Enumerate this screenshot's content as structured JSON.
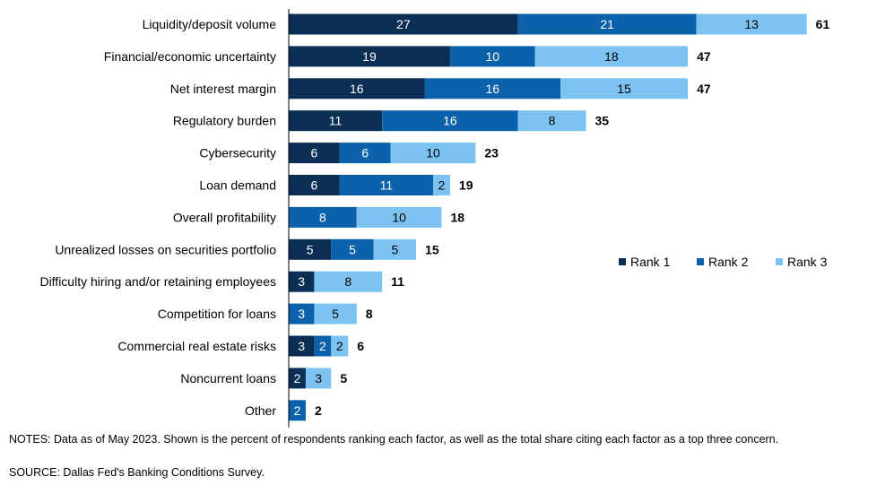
{
  "chart_data": {
    "type": "bar",
    "orientation": "horizontal",
    "stacked": true,
    "categories": [
      "Liquidity/deposit volume",
      "Financial/economic uncertainty",
      "Net interest margin",
      "Regulatory burden",
      "Cybersecurity",
      "Loan demand",
      "Overall profitability",
      "Unrealized losses on securities portfolio",
      "Difficulty hiring and/or retaining employees",
      "Competition for loans",
      "Commercial real estate risks",
      "Noncurrent loans",
      "Other"
    ],
    "series": [
      {
        "name": "Rank 1",
        "color": "#0b2f54",
        "values": [
          27,
          19,
          16,
          11,
          6,
          6,
          0,
          5,
          3,
          0,
          3,
          2,
          0
        ]
      },
      {
        "name": "Rank 2",
        "color": "#0b62ab",
        "values": [
          21,
          10,
          16,
          16,
          6,
          11,
          8,
          5,
          0,
          3,
          2,
          0,
          2
        ]
      },
      {
        "name": "Rank 3",
        "color": "#7cc3f2",
        "values": [
          13,
          18,
          15,
          8,
          10,
          2,
          10,
          5,
          8,
          5,
          2,
          3,
          0
        ]
      }
    ],
    "series_labels": [
      [
        "27",
        "21",
        "13"
      ],
      [
        "19",
        "10",
        "18"
      ],
      [
        "16",
        "16",
        "15"
      ],
      [
        "11",
        "16",
        "8"
      ],
      [
        "6",
        "6",
        "10"
      ],
      [
        "6",
        "11",
        "2"
      ],
      [
        "",
        "8",
        "10"
      ],
      [
        "5",
        "5",
        "5"
      ],
      [
        "3",
        "",
        "8"
      ],
      [
        "",
        "3",
        "5"
      ],
      [
        "3",
        "2",
        "2"
      ],
      [
        "2",
        "",
        "3"
      ],
      [
        "",
        "2",
        ""
      ]
    ],
    "totals": [
      61,
      47,
      47,
      35,
      23,
      19,
      18,
      15,
      11,
      8,
      6,
      5,
      2
    ],
    "xlim": [
      0,
      66
    ],
    "legend": "right",
    "grid": false,
    "title": "",
    "xlabel": "",
    "ylabel": ""
  },
  "notes": "NOTES: Data as of May 2023. Shown is the percent of respondents ranking each factor, as well as the total share citing each factor as a top three concern.",
  "source": "SOURCE: Dallas Fed's Banking Conditions Survey."
}
